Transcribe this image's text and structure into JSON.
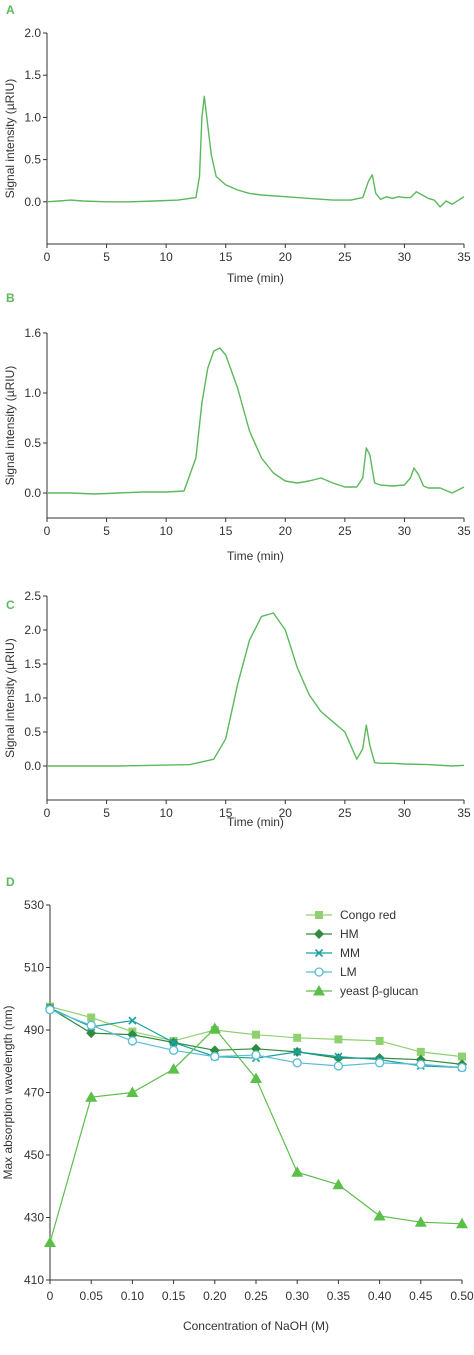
{
  "colors": {
    "trace": "#5cb85c",
    "panel_letter": "#5cb85c",
    "congo_red": "#8fd16f",
    "hm": "#2e8b3f",
    "mm": "#1aa0a0",
    "lm": "#5bbcd6",
    "yeast": "#5cbf4a"
  },
  "chart_data": [
    {
      "type": "line",
      "panel": "A",
      "xlabel": "Time (min)",
      "ylabel": "Signal intensity (µRIU)",
      "xlim": [
        0,
        35
      ],
      "ylim": [
        -0.5,
        2.0
      ],
      "xticks": [
        "0",
        "5",
        "10",
        "15",
        "20",
        "25",
        "30",
        "35"
      ],
      "yticks": [
        "0.0",
        "0.5",
        "1.0",
        "1.5",
        "2.0"
      ],
      "ytick_values": [
        0.0,
        0.5,
        1.0,
        1.5,
        2.0
      ],
      "series": [
        {
          "x": [
            0,
            1,
            2,
            3,
            5,
            7,
            9,
            11,
            12.5,
            12.8,
            13.0,
            13.2,
            13.5,
            13.8,
            14.2,
            15,
            16,
            17,
            18,
            20,
            22,
            24,
            25.5,
            26.5,
            27.0,
            27.3,
            27.6,
            28,
            28.5,
            29,
            29.5,
            30,
            30.5,
            31,
            31.5,
            32,
            32.5,
            33,
            33.5,
            34,
            35
          ],
          "y": [
            0.0,
            0.01,
            0.02,
            0.01,
            0.0,
            0.0,
            0.01,
            0.02,
            0.05,
            0.3,
            1.0,
            1.25,
            0.9,
            0.55,
            0.3,
            0.2,
            0.14,
            0.1,
            0.08,
            0.06,
            0.04,
            0.02,
            0.02,
            0.05,
            0.25,
            0.32,
            0.1,
            0.03,
            0.06,
            0.04,
            0.06,
            0.05,
            0.05,
            0.12,
            0.08,
            0.04,
            0.02,
            -0.06,
            0.01,
            -0.03,
            0.06
          ]
        }
      ]
    },
    {
      "type": "line",
      "panel": "B",
      "xlabel": "Time (min)",
      "ylabel": "Signal intensity (µRIU)",
      "xlim": [
        0,
        35
      ],
      "ylim": [
        -0.25,
        1.6
      ],
      "xticks": [
        "0",
        "5",
        "10",
        "15",
        "20",
        "25",
        "30",
        "35"
      ],
      "yticks": [
        "0.0",
        "0.5",
        "1.0",
        "1.6"
      ],
      "ytick_values": [
        0.0,
        0.5,
        1.0,
        1.6
      ],
      "series": [
        {
          "x": [
            0,
            2,
            4,
            6,
            8,
            10,
            11.5,
            12.5,
            13,
            13.5,
            14,
            14.5,
            15,
            16,
            17,
            18,
            19,
            20,
            21,
            22,
            23,
            24,
            25,
            26,
            26.5,
            26.8,
            27.1,
            27.5,
            28,
            29,
            30,
            30.5,
            30.8,
            31.2,
            31.6,
            32,
            33,
            34,
            35
          ],
          "y": [
            0.0,
            0.0,
            -0.01,
            0.0,
            0.01,
            0.01,
            0.02,
            0.35,
            0.9,
            1.25,
            1.42,
            1.45,
            1.38,
            1.05,
            0.62,
            0.35,
            0.2,
            0.12,
            0.1,
            0.12,
            0.15,
            0.1,
            0.06,
            0.06,
            0.15,
            0.45,
            0.38,
            0.1,
            0.08,
            0.07,
            0.08,
            0.15,
            0.25,
            0.18,
            0.07,
            0.05,
            0.05,
            0.0,
            0.06
          ]
        }
      ]
    },
    {
      "type": "line",
      "panel": "C",
      "xlabel": "Time (min)",
      "ylabel": "Signal intensity (µRIU)",
      "xlim": [
        0,
        35
      ],
      "ylim": [
        -0.5,
        2.5
      ],
      "xticks": [
        "0",
        "5",
        "10",
        "15",
        "20",
        "25",
        "30",
        "35"
      ],
      "yticks": [
        "0.0",
        "0.5",
        "1.0",
        "1.5",
        "2.0",
        "2.5"
      ],
      "ytick_values": [
        0.0,
        0.5,
        1.0,
        1.5,
        2.0,
        2.5
      ],
      "series": [
        {
          "x": [
            0,
            3,
            6,
            9,
            12,
            14,
            15,
            16,
            17,
            18,
            19,
            20,
            21,
            22,
            23,
            24,
            25,
            26,
            26.5,
            26.8,
            27.1,
            27.5,
            28,
            29,
            30,
            32,
            34,
            35
          ],
          "y": [
            0.0,
            0.0,
            0.0,
            0.01,
            0.02,
            0.1,
            0.4,
            1.2,
            1.85,
            2.2,
            2.25,
            2.0,
            1.45,
            1.05,
            0.8,
            0.65,
            0.5,
            0.1,
            0.25,
            0.6,
            0.3,
            0.05,
            0.04,
            0.04,
            0.03,
            0.02,
            0.0,
            0.01
          ]
        }
      ]
    },
    {
      "type": "line",
      "panel": "D",
      "xlabel": "Concentration of NaOH (M)",
      "ylabel": "Max absorption wavelength (nm)",
      "xlim": [
        0,
        0.5
      ],
      "ylim": [
        410,
        530
      ],
      "xticks": [
        "0",
        "0.05",
        "0.10",
        "0.15",
        "0.20",
        "0.25",
        "0.30",
        "0.35",
        "0.40",
        "0.45",
        "0.50"
      ],
      "yticks": [
        "410",
        "430",
        "450",
        "470",
        "490",
        "510",
        "530"
      ],
      "ytick_values": [
        410,
        430,
        450,
        470,
        490,
        510,
        530
      ],
      "legend_position": "top-right",
      "x": [
        0,
        0.05,
        0.1,
        0.15,
        0.2,
        0.25,
        0.3,
        0.35,
        0.4,
        0.45,
        0.5
      ],
      "series": [
        {
          "name": "Congo red",
          "marker": "square",
          "color_key": "congo_red",
          "values": [
            497.5,
            494,
            489.5,
            486.5,
            490,
            488.5,
            487.5,
            487,
            486.5,
            483,
            481.5
          ]
        },
        {
          "name": "HM",
          "marker": "diamond",
          "color_key": "hm",
          "values": [
            497,
            489,
            488.5,
            486,
            483.5,
            484,
            483,
            481,
            481,
            480.5,
            479
          ]
        },
        {
          "name": "MM",
          "marker": "x",
          "color_key": "mm",
          "values": [
            497,
            491,
            493,
            486,
            481.5,
            481,
            483,
            481.5,
            480.5,
            478.5,
            478
          ]
        },
        {
          "name": "LM",
          "marker": "circle",
          "color_key": "lm",
          "values": [
            496.5,
            491.5,
            486.5,
            483.5,
            481.5,
            482,
            479.5,
            478.5,
            479.5,
            479,
            478
          ]
        },
        {
          "name": "yeast β-glucan",
          "marker": "triangle",
          "color_key": "yeast",
          "values": [
            422,
            468.5,
            470,
            477.5,
            490.5,
            474.5,
            444.5,
            440.5,
            430.5,
            428.5,
            428
          ]
        }
      ]
    }
  ]
}
